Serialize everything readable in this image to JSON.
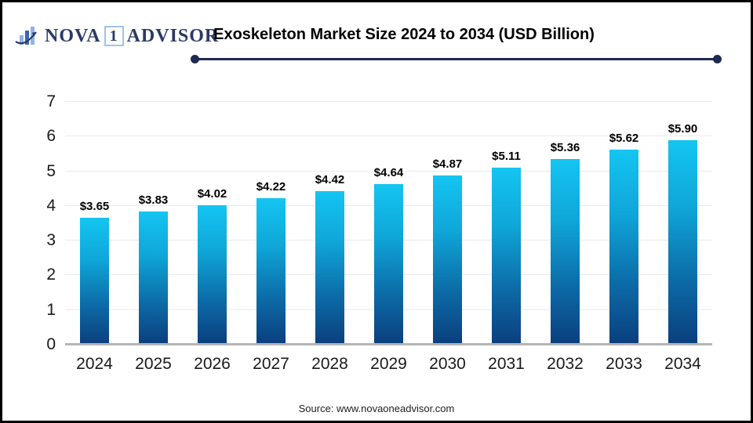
{
  "logo": {
    "name_part1": "NOVA",
    "number": "1",
    "name_part2": "ADVISOR"
  },
  "header": {
    "title": "Exoskeleton Market Size 2024 to 2034 (USD Billion)"
  },
  "footer": {
    "source": "Source: www.novaoneadvisor.com"
  },
  "colors": {
    "accent_navy": "#1e2a4e",
    "logo_navy": "#2c3966",
    "logo_box_blue": "#9fc3e8",
    "bar_gradient_top": "#14c5f2",
    "bar_gradient_bottom": "#0b3e7d",
    "gridline": "#eaeaea",
    "axis_baseline": "#b5b5b5",
    "text": "#1a1a1a"
  },
  "chart_data": {
    "type": "bar",
    "title": "Exoskeleton Market Size 2024 to 2034 (USD Billion)",
    "categories": [
      "2024",
      "2025",
      "2026",
      "2027",
      "2028",
      "2029",
      "2030",
      "2031",
      "2032",
      "2033",
      "2034"
    ],
    "values": [
      3.65,
      3.83,
      4.02,
      4.22,
      4.42,
      4.64,
      4.87,
      5.11,
      5.36,
      5.62,
      5.9
    ],
    "value_labels": [
      "$3.65",
      "$3.83",
      "$4.02",
      "$4.22",
      "$4.42",
      "$4.64",
      "$4.87",
      "$5.11",
      "$5.36",
      "$5.62",
      "$5.90"
    ],
    "xlabel": "",
    "ylabel": "",
    "ylim": [
      0,
      7
    ],
    "y_ticks": [
      0,
      1,
      2,
      3,
      4,
      5,
      6,
      7
    ],
    "grid": true,
    "legend": false
  }
}
